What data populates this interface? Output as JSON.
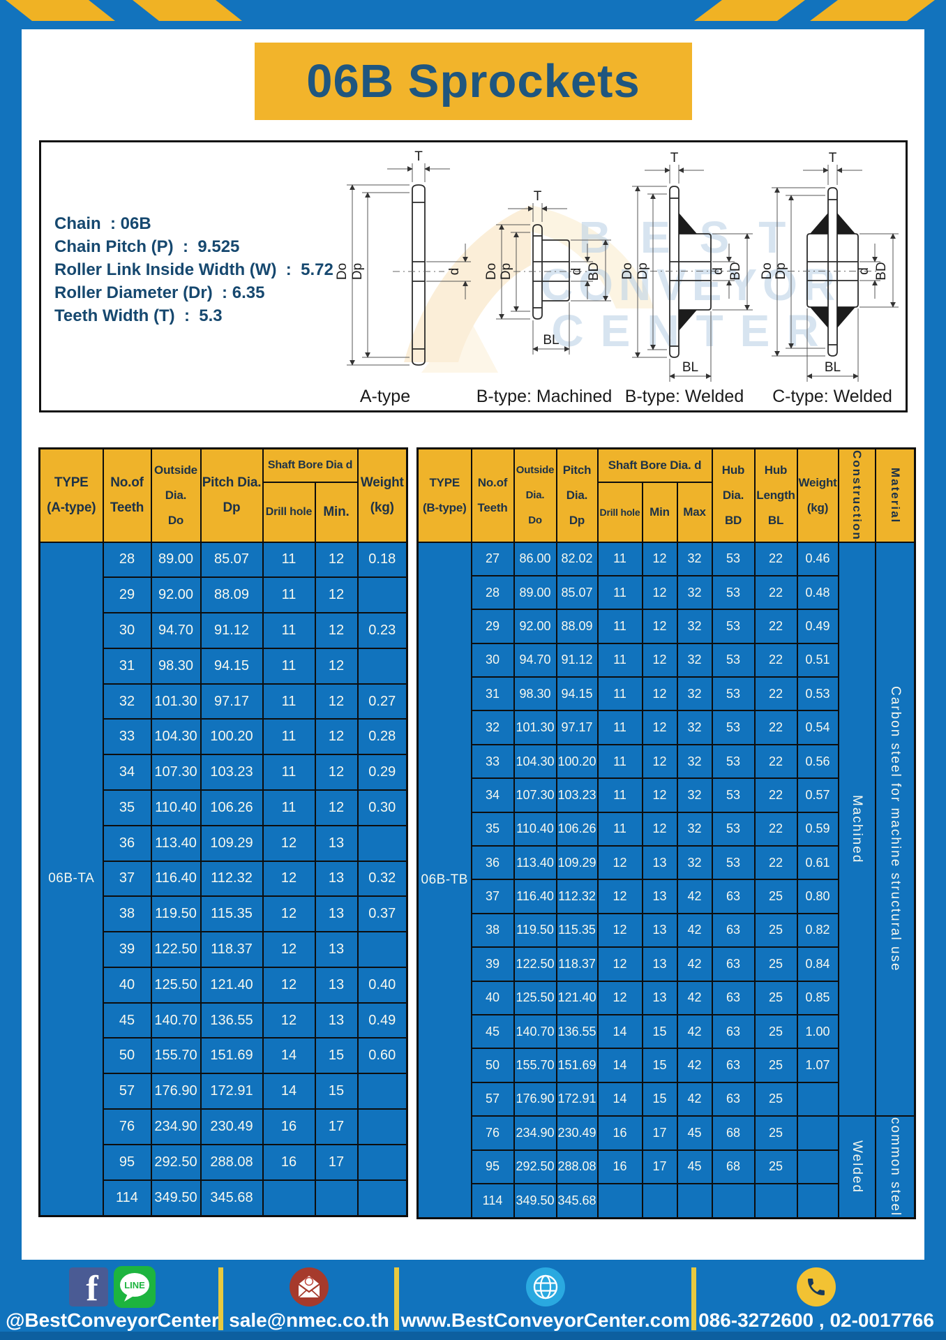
{
  "title": "06B Sprockets",
  "diagram": {
    "specs": [
      "Chain  : 06B",
      "Chain Pitch (P)  :  9.525",
      "Roller Link Inside Width (W)  :  5.72",
      "Roller Diameter (Dr)  : 6.35",
      "Teeth Width (T)  :  5.3"
    ],
    "dim_labels": {
      "t": "T",
      "do": "Do",
      "dp": "Dp",
      "d": "d",
      "bd": "BD",
      "bl": "BL"
    },
    "type_labels": [
      "A-type",
      "B-type: Machined",
      "B-type: Welded",
      "C-type: Welded"
    ],
    "watermark": [
      "BEST",
      "CONVEYOR",
      "CENTER"
    ]
  },
  "table_a": {
    "type_label": "06B-TA",
    "headers": {
      "type": "TYPE\n(A-type)",
      "teeth": "No.of\nTeeth",
      "outside": "Outside\nDia.\nDo",
      "pitch": "Pitch Dia.\nDp",
      "shaft_group": "Shaft Bore Dia d",
      "drill": "Drill hole",
      "min": "Min.",
      "weight": "Weight\n(kg)"
    },
    "rows": [
      [
        "28",
        "89.00",
        "85.07",
        "11",
        "12",
        "0.18"
      ],
      [
        "29",
        "92.00",
        "88.09",
        "11",
        "12",
        ""
      ],
      [
        "30",
        "94.70",
        "91.12",
        "11",
        "12",
        "0.23"
      ],
      [
        "31",
        "98.30",
        "94.15",
        "11",
        "12",
        ""
      ],
      [
        "32",
        "101.30",
        "97.17",
        "11",
        "12",
        "0.27"
      ],
      [
        "33",
        "104.30",
        "100.20",
        "11",
        "12",
        "0.28"
      ],
      [
        "34",
        "107.30",
        "103.23",
        "11",
        "12",
        "0.29"
      ],
      [
        "35",
        "110.40",
        "106.26",
        "11",
        "12",
        "0.30"
      ],
      [
        "36",
        "113.40",
        "109.29",
        "12",
        "13",
        ""
      ],
      [
        "37",
        "116.40",
        "112.32",
        "12",
        "13",
        "0.32"
      ],
      [
        "38",
        "119.50",
        "115.35",
        "12",
        "13",
        "0.37"
      ],
      [
        "39",
        "122.50",
        "118.37",
        "12",
        "13",
        ""
      ],
      [
        "40",
        "125.50",
        "121.40",
        "12",
        "13",
        "0.40"
      ],
      [
        "45",
        "140.70",
        "136.55",
        "12",
        "13",
        "0.49"
      ],
      [
        "50",
        "155.70",
        "151.69",
        "14",
        "15",
        "0.60"
      ],
      [
        "57",
        "176.90",
        "172.91",
        "14",
        "15",
        ""
      ],
      [
        "76",
        "234.90",
        "230.49",
        "16",
        "17",
        ""
      ],
      [
        "95",
        "292.50",
        "288.08",
        "16",
        "17",
        ""
      ],
      [
        "114",
        "349.50",
        "345.68",
        "",
        "",
        ""
      ]
    ]
  },
  "table_b": {
    "type_label": "06B-TB",
    "headers": {
      "type": "TYPE\n(B-type)",
      "teeth": "No.of\nTeeth",
      "outside": "Outside\nDia.\nDo",
      "pitch": "Pitch\nDia.\nDp",
      "shaft_group": "Shaft Bore Dia. d",
      "drill": "Drill hole",
      "min": "Min",
      "max": "Max",
      "hub_dia": "Hub\nDia.\nBD",
      "hub_len": "Hub\nLength\nBL",
      "weight": "Weight\n(kg)",
      "construction": "Construction",
      "material": "Material"
    },
    "rows": [
      [
        "27",
        "86.00",
        "82.02",
        "11",
        "12",
        "32",
        "53",
        "22",
        "0.46"
      ],
      [
        "28",
        "89.00",
        "85.07",
        "11",
        "12",
        "32",
        "53",
        "22",
        "0.48"
      ],
      [
        "29",
        "92.00",
        "88.09",
        "11",
        "12",
        "32",
        "53",
        "22",
        "0.49"
      ],
      [
        "30",
        "94.70",
        "91.12",
        "11",
        "12",
        "32",
        "53",
        "22",
        "0.51"
      ],
      [
        "31",
        "98.30",
        "94.15",
        "11",
        "12",
        "32",
        "53",
        "22",
        "0.53"
      ],
      [
        "32",
        "101.30",
        "97.17",
        "11",
        "12",
        "32",
        "53",
        "22",
        "0.54"
      ],
      [
        "33",
        "104.30",
        "100.20",
        "11",
        "12",
        "32",
        "53",
        "22",
        "0.56"
      ],
      [
        "34",
        "107.30",
        "103.23",
        "11",
        "12",
        "32",
        "53",
        "22",
        "0.57"
      ],
      [
        "35",
        "110.40",
        "106.26",
        "11",
        "12",
        "32",
        "53",
        "22",
        "0.59"
      ],
      [
        "36",
        "113.40",
        "109.29",
        "12",
        "13",
        "32",
        "53",
        "22",
        "0.61"
      ],
      [
        "37",
        "116.40",
        "112.32",
        "12",
        "13",
        "42",
        "63",
        "25",
        "0.80"
      ],
      [
        "38",
        "119.50",
        "115.35",
        "12",
        "13",
        "42",
        "63",
        "25",
        "0.82"
      ],
      [
        "39",
        "122.50",
        "118.37",
        "12",
        "13",
        "42",
        "63",
        "25",
        "0.84"
      ],
      [
        "40",
        "125.50",
        "121.40",
        "12",
        "13",
        "42",
        "63",
        "25",
        "0.85"
      ],
      [
        "45",
        "140.70",
        "136.55",
        "14",
        "15",
        "42",
        "63",
        "25",
        "1.00"
      ],
      [
        "50",
        "155.70",
        "151.69",
        "14",
        "15",
        "42",
        "63",
        "25",
        "1.07"
      ],
      [
        "57",
        "176.90",
        "172.91",
        "14",
        "15",
        "42",
        "63",
        "25",
        ""
      ],
      [
        "76",
        "234.90",
        "230.49",
        "16",
        "17",
        "45",
        "68",
        "25",
        ""
      ],
      [
        "95",
        "292.50",
        "288.08",
        "16",
        "17",
        "45",
        "68",
        "25",
        ""
      ],
      [
        "114",
        "349.50",
        "345.68",
        "",
        "",
        "",
        "",
        "",
        ""
      ]
    ],
    "construction_segments": [
      {
        "label": "Machined",
        "rows": 17
      },
      {
        "label": "Welded",
        "rows": 3
      }
    ],
    "material_segments": [
      {
        "label": "Carbon steel for machine structural use",
        "rows": 17
      },
      {
        "label": "common steel",
        "rows": 3
      }
    ]
  },
  "footer": {
    "social_label": "@BestConveyorCenter",
    "email": "sale@nmec.co.th",
    "website": "www.BestConveyorCenter.com",
    "phones": "086-3272600 , 02-0017766",
    "line_text": "LINE",
    "facebook_letter": "f"
  },
  "colors": {
    "blue": "#1173bd",
    "yellow": "#efb32a",
    "stripe_yellow": "#f0b224",
    "separator_yellow": "#e8c93e",
    "navy_text": "#1d3247",
    "title_text": "#1f567f"
  }
}
